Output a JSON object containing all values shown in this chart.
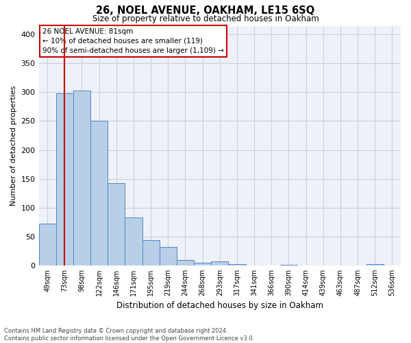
{
  "title": "26, NOEL AVENUE, OAKHAM, LE15 6SQ",
  "subtitle": "Size of property relative to detached houses in Oakham",
  "xlabel": "Distribution of detached houses by size in Oakham",
  "ylabel": "Number of detached properties",
  "categories": [
    "49sqm",
    "73sqm",
    "98sqm",
    "122sqm",
    "146sqm",
    "171sqm",
    "195sqm",
    "219sqm",
    "244sqm",
    "268sqm",
    "293sqm",
    "317sqm",
    "341sqm",
    "366sqm",
    "390sqm",
    "414sqm",
    "439sqm",
    "463sqm",
    "487sqm",
    "512sqm",
    "536sqm"
  ],
  "values": [
    72,
    298,
    303,
    250,
    143,
    83,
    44,
    32,
    10,
    5,
    7,
    2,
    0,
    0,
    1,
    0,
    0,
    0,
    0,
    2,
    0
  ],
  "bar_color": "#b8cfe8",
  "bar_edge_color": "#5585c0",
  "vline_x": 1,
  "vline_color": "#cc0000",
  "ylim": [
    0,
    415
  ],
  "yticks": [
    0,
    50,
    100,
    150,
    200,
    250,
    300,
    350,
    400
  ],
  "annotation_title": "26 NOEL AVENUE: 81sqm",
  "annotation_line1": "← 10% of detached houses are smaller (119)",
  "annotation_line2": "90% of semi-detached houses are larger (1,109) →",
  "annotation_box_color": "#ffffff",
  "annotation_box_edge": "#cc0000",
  "footer_line1": "Contains HM Land Registry data © Crown copyright and database right 2024.",
  "footer_line2": "Contains public sector information licensed under the Open Government Licence v3.0.",
  "background_color": "#eef2f8",
  "grid_color": "#c8d0dc"
}
